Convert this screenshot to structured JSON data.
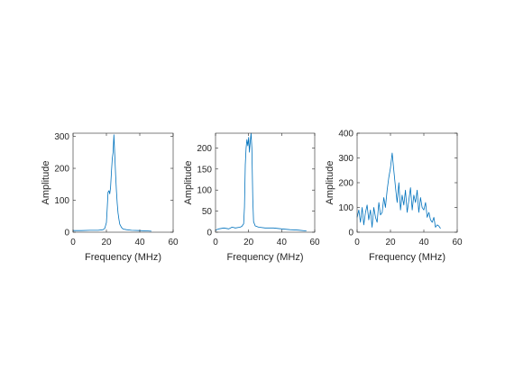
{
  "figure": {
    "background": "#ffffff",
    "axes_color": "#262626",
    "line_color": "#0072bd"
  },
  "chart_data": [
    {
      "type": "line",
      "xlabel": "Frequency (MHz)",
      "ylabel": "Amplitude",
      "xlim": [
        0,
        60
      ],
      "ylim": [
        0,
        310
      ],
      "xticks": [
        0,
        20,
        40,
        60
      ],
      "yticks": [
        0,
        100,
        200,
        300
      ],
      "grid": false,
      "series": [
        {
          "x": [
            0,
            5,
            10,
            15,
            18,
            19,
            20,
            20.5,
            21,
            21.5,
            22,
            22.5,
            23,
            23.5,
            24,
            24.5,
            25,
            25.5,
            26,
            26.5,
            27,
            27.5,
            28,
            29,
            30,
            32,
            35,
            40,
            45,
            47
          ],
          "y": [
            5,
            5,
            6,
            6,
            8,
            12,
            30,
            75,
            125,
            130,
            120,
            140,
            190,
            230,
            250,
            305,
            240,
            180,
            130,
            90,
            60,
            40,
            25,
            15,
            10,
            8,
            6,
            5,
            4,
            3
          ]
        }
      ]
    },
    {
      "type": "line",
      "xlabel": "Frequency (MHz)",
      "ylabel": "Amplitude",
      "xlim": [
        0,
        60
      ],
      "ylim": [
        0,
        235
      ],
      "xticks": [
        0,
        20,
        40,
        60
      ],
      "yticks": [
        0,
        50,
        100,
        150,
        200
      ],
      "grid": false,
      "series": [
        {
          "x": [
            0,
            2,
            5,
            8,
            10,
            12,
            15,
            16,
            17,
            17.5,
            18,
            18.5,
            19,
            19.5,
            20,
            20.5,
            21,
            21.5,
            22,
            22.5,
            23,
            24,
            26,
            30,
            35,
            40,
            45,
            50,
            55
          ],
          "y": [
            5,
            8,
            10,
            8,
            12,
            10,
            12,
            14,
            20,
            60,
            160,
            200,
            220,
            205,
            225,
            190,
            215,
            235,
            200,
            80,
            25,
            15,
            12,
            10,
            10,
            8,
            6,
            5,
            3
          ]
        }
      ]
    },
    {
      "type": "line",
      "xlabel": "Frequency (MHz)",
      "ylabel": "Amplitude",
      "xlim": [
        0,
        60
      ],
      "ylim": [
        0,
        400
      ],
      "xticks": [
        0,
        20,
        40,
        60
      ],
      "yticks": [
        0,
        100,
        200,
        300,
        400
      ],
      "grid": false,
      "series": [
        {
          "x": [
            0,
            1,
            2,
            3,
            4,
            5,
            6,
            7,
            8,
            9,
            10,
            11,
            12,
            13,
            14,
            15,
            16,
            17,
            18,
            19,
            20,
            21,
            22,
            23,
            24,
            25,
            26,
            27,
            28,
            29,
            30,
            31,
            32,
            33,
            34,
            35,
            36,
            37,
            38,
            39,
            40,
            41,
            42,
            43,
            44,
            45,
            46,
            47,
            48,
            49,
            50
          ],
          "y": [
            60,
            90,
            40,
            100,
            30,
            80,
            110,
            50,
            90,
            20,
            100,
            60,
            40,
            120,
            70,
            80,
            140,
            100,
            170,
            220,
            260,
            320,
            250,
            180,
            120,
            200,
            90,
            150,
            110,
            170,
            80,
            130,
            180,
            90,
            150,
            120,
            170,
            80,
            140,
            100,
            90,
            120,
            60,
            80,
            50,
            40,
            60,
            20,
            30,
            25,
            15
          ]
        }
      ]
    }
  ]
}
